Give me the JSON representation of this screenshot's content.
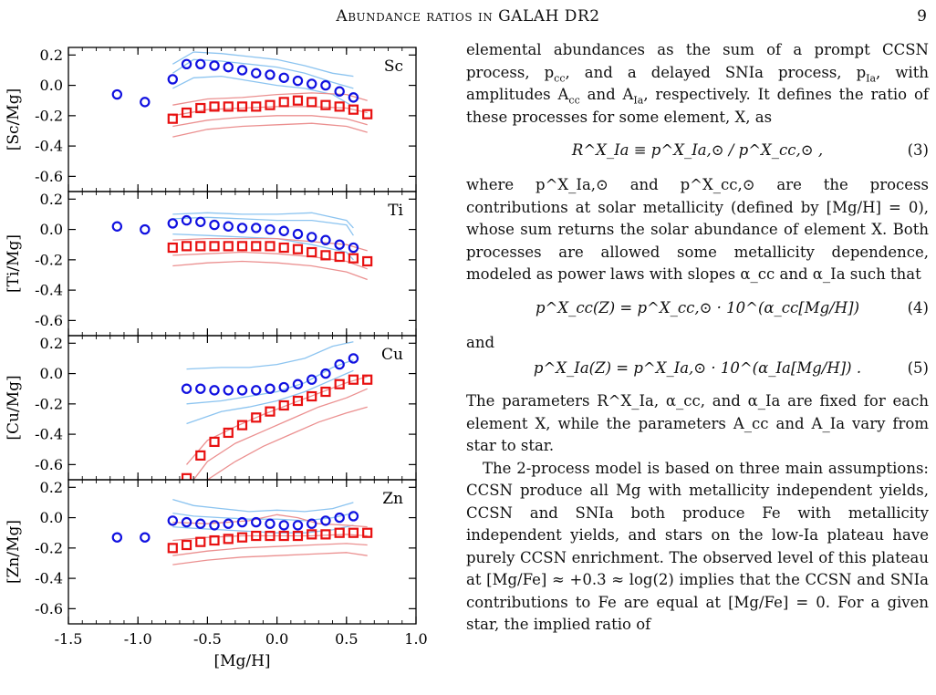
{
  "page": {
    "running_title": "Abundance ratios in GALAH DR2",
    "page_number": "9"
  },
  "chart_data": {
    "type": "scatter",
    "xlabel": "[Mg/H]",
    "xlim": [
      -1.5,
      1.0
    ],
    "x_ticks": [
      "-1.5",
      "-1.0",
      "-0.5",
      "0.0",
      "0.5",
      "1.0"
    ],
    "y_ticks": [
      "0.2",
      "0.0",
      "-0.2",
      "-0.4",
      "-0.6"
    ],
    "ylim": [
      -0.7,
      0.25
    ],
    "colors": {
      "low_ia": "#1010e0",
      "high_ia": "#e81010",
      "low_ia_band": "#8cc4f0",
      "high_ia_band": "#eb9090"
    },
    "panels": [
      {
        "element": "Sc",
        "ylabel": "[Sc/Mg]",
        "low_ia": {
          "x": [
            -1.15,
            -0.95,
            -0.75,
            -0.65,
            -0.55,
            -0.45,
            -0.35,
            -0.25,
            -0.15,
            -0.05,
            0.05,
            0.15,
            0.25,
            0.35,
            0.45,
            0.55
          ],
          "y": [
            -0.06,
            -0.11,
            0.04,
            0.14,
            0.14,
            0.13,
            0.12,
            0.1,
            0.08,
            0.07,
            0.05,
            0.03,
            0.01,
            0.0,
            -0.04,
            -0.08
          ]
        },
        "high_ia": {
          "x": [
            -0.75,
            -0.65,
            -0.55,
            -0.45,
            -0.35,
            -0.25,
            -0.15,
            -0.05,
            0.05,
            0.15,
            0.25,
            0.35,
            0.45,
            0.55,
            0.65
          ],
          "y": [
            -0.22,
            -0.18,
            -0.15,
            -0.14,
            -0.14,
            -0.14,
            -0.14,
            -0.13,
            -0.11,
            -0.1,
            -0.11,
            -0.13,
            -0.14,
            -0.16,
            -0.19
          ]
        },
        "low_ia_bands": [
          {
            "x": [
              -0.75,
              -0.6,
              -0.4,
              -0.2,
              0.0,
              0.2,
              0.4,
              0.55
            ],
            "y": [
              0.14,
              0.22,
              0.21,
              0.19,
              0.17,
              0.13,
              0.08,
              0.06
            ]
          },
          {
            "x": [
              -0.75,
              -0.6,
              -0.4,
              -0.2,
              0.0,
              0.2,
              0.4,
              0.55
            ],
            "y": [
              -0.02,
              0.05,
              0.06,
              0.03,
              0.0,
              -0.02,
              -0.06,
              -0.14
            ]
          },
          {
            "x": [
              -0.75,
              -0.6,
              -0.4,
              -0.2,
              0.0,
              0.2,
              0.4,
              0.55
            ],
            "y": [
              0.08,
              0.17,
              0.16,
              0.14,
              0.12,
              0.08,
              0.02,
              -0.02
            ]
          }
        ],
        "high_ia_bands": [
          {
            "x": [
              -0.75,
              -0.5,
              -0.25,
              0.0,
              0.25,
              0.5,
              0.65
            ],
            "y": [
              -0.13,
              -0.09,
              -0.08,
              -0.06,
              -0.05,
              -0.06,
              -0.1
            ]
          },
          {
            "x": [
              -0.75,
              -0.5,
              -0.25,
              0.0,
              0.25,
              0.5,
              0.65
            ],
            "y": [
              -0.2,
              -0.16,
              -0.15,
              -0.14,
              -0.14,
              -0.15,
              -0.18
            ]
          },
          {
            "x": [
              -0.75,
              -0.5,
              -0.25,
              0.0,
              0.25,
              0.5,
              0.65
            ],
            "y": [
              -0.27,
              -0.23,
              -0.21,
              -0.2,
              -0.2,
              -0.22,
              -0.26
            ]
          },
          {
            "x": [
              -0.75,
              -0.5,
              -0.25,
              0.0,
              0.25,
              0.5,
              0.65
            ],
            "y": [
              -0.34,
              -0.29,
              -0.27,
              -0.26,
              -0.25,
              -0.27,
              -0.31
            ]
          }
        ]
      },
      {
        "element": "Ti",
        "ylabel": "[Ti/Mg]",
        "low_ia": {
          "x": [
            -1.15,
            -0.95,
            -0.75,
            -0.65,
            -0.55,
            -0.45,
            -0.35,
            -0.25,
            -0.15,
            -0.05,
            0.05,
            0.15,
            0.25,
            0.35,
            0.45,
            0.55
          ],
          "y": [
            0.02,
            0.0,
            0.04,
            0.06,
            0.05,
            0.03,
            0.02,
            0.01,
            0.01,
            0.0,
            -0.01,
            -0.03,
            -0.05,
            -0.07,
            -0.1,
            -0.12
          ]
        },
        "high_ia": {
          "x": [
            -0.75,
            -0.65,
            -0.55,
            -0.45,
            -0.35,
            -0.25,
            -0.15,
            -0.05,
            0.05,
            0.15,
            0.25,
            0.35,
            0.45,
            0.55,
            0.65
          ],
          "y": [
            -0.12,
            -0.11,
            -0.11,
            -0.11,
            -0.11,
            -0.11,
            -0.11,
            -0.11,
            -0.12,
            -0.13,
            -0.15,
            -0.17,
            -0.18,
            -0.19,
            -0.21
          ]
        },
        "low_ia_bands": [
          {
            "x": [
              -0.75,
              -0.5,
              -0.25,
              0.0,
              0.25,
              0.5,
              0.55
            ],
            "y": [
              0.1,
              0.11,
              0.1,
              0.1,
              0.11,
              0.06,
              0.01
            ]
          },
          {
            "x": [
              -0.75,
              -0.5,
              -0.25,
              0.0,
              0.25,
              0.5,
              0.55
            ],
            "y": [
              -0.03,
              -0.04,
              -0.05,
              -0.06,
              -0.1,
              -0.15,
              -0.2
            ]
          },
          {
            "x": [
              -0.75,
              -0.5,
              -0.25,
              0.0,
              0.25,
              0.5,
              0.55
            ],
            "y": [
              0.07,
              0.08,
              0.07,
              0.06,
              0.06,
              0.03,
              -0.04
            ]
          }
        ],
        "high_ia_bands": [
          {
            "x": [
              -0.75,
              -0.5,
              -0.25,
              0.0,
              0.25,
              0.5,
              0.65
            ],
            "y": [
              -0.07,
              -0.06,
              -0.06,
              -0.06,
              -0.08,
              -0.1,
              -0.14
            ]
          },
          {
            "x": [
              -0.75,
              -0.5,
              -0.25,
              0.0,
              0.25,
              0.5,
              0.65
            ],
            "y": [
              -0.17,
              -0.16,
              -0.15,
              -0.16,
              -0.18,
              -0.21,
              -0.26
            ]
          },
          {
            "x": [
              -0.75,
              -0.5,
              -0.25,
              0.0,
              0.25,
              0.5,
              0.65
            ],
            "y": [
              -0.24,
              -0.22,
              -0.21,
              -0.22,
              -0.24,
              -0.28,
              -0.33
            ]
          }
        ]
      },
      {
        "element": "Cu",
        "ylabel": "[Cu/Mg]",
        "low_ia": {
          "x": [
            -0.65,
            -0.55,
            -0.45,
            -0.35,
            -0.25,
            -0.15,
            -0.05,
            0.05,
            0.15,
            0.25,
            0.35,
            0.45,
            0.55
          ],
          "y": [
            -0.1,
            -0.1,
            -0.11,
            -0.11,
            -0.11,
            -0.11,
            -0.1,
            -0.09,
            -0.07,
            -0.04,
            0.0,
            0.06,
            0.1
          ]
        },
        "high_ia": {
          "x": [
            -0.65,
            -0.55,
            -0.45,
            -0.35,
            -0.25,
            -0.15,
            -0.05,
            0.05,
            0.15,
            0.25,
            0.35,
            0.45,
            0.55,
            0.65
          ],
          "y": [
            -0.69,
            -0.54,
            -0.45,
            -0.39,
            -0.34,
            -0.29,
            -0.25,
            -0.21,
            -0.18,
            -0.15,
            -0.12,
            -0.07,
            -0.04,
            -0.04
          ]
        },
        "low_ia_bands": [
          {
            "x": [
              -0.65,
              -0.4,
              -0.2,
              0.0,
              0.2,
              0.4,
              0.55
            ],
            "y": [
              0.03,
              0.04,
              0.04,
              0.06,
              0.1,
              0.18,
              0.21
            ]
          },
          {
            "x": [
              -0.65,
              -0.4,
              -0.2,
              0.0,
              0.2,
              0.4,
              0.55
            ],
            "y": [
              -0.33,
              -0.25,
              -0.22,
              -0.18,
              -0.12,
              -0.04,
              0.02
            ]
          },
          {
            "x": [
              -0.65,
              -0.4,
              -0.2,
              0.0,
              0.2,
              0.4,
              0.55
            ],
            "y": [
              -0.2,
              -0.18,
              -0.15,
              -0.12,
              -0.06,
              0.04,
              0.09
            ]
          }
        ],
        "high_ia_bands": [
          {
            "x": [
              -0.65,
              -0.5,
              -0.3,
              -0.1,
              0.1,
              0.3,
              0.5,
              0.65
            ],
            "y": [
              -0.6,
              -0.44,
              -0.35,
              -0.27,
              -0.2,
              -0.13,
              -0.06,
              -0.02
            ]
          },
          {
            "x": [
              -0.6,
              -0.5,
              -0.3,
              -0.1,
              0.1,
              0.3,
              0.5,
              0.65
            ],
            "y": [
              -0.7,
              -0.58,
              -0.46,
              -0.38,
              -0.3,
              -0.22,
              -0.16,
              -0.1
            ]
          },
          {
            "x": [
              -0.5,
              -0.3,
              -0.1,
              0.1,
              0.3,
              0.5,
              0.65
            ],
            "y": [
              -0.7,
              -0.58,
              -0.48,
              -0.4,
              -0.32,
              -0.26,
              -0.22
            ]
          }
        ]
      },
      {
        "element": "Zn",
        "ylabel": "[Zn/Mg]",
        "low_ia": {
          "x": [
            -1.15,
            -0.95,
            -0.75,
            -0.65,
            -0.55,
            -0.45,
            -0.35,
            -0.25,
            -0.15,
            -0.05,
            0.05,
            0.15,
            0.25,
            0.35,
            0.45,
            0.55
          ],
          "y": [
            -0.13,
            -0.13,
            -0.02,
            -0.03,
            -0.04,
            -0.05,
            -0.04,
            -0.03,
            -0.03,
            -0.04,
            -0.05,
            -0.05,
            -0.04,
            -0.02,
            0.0,
            0.01
          ]
        },
        "high_ia": {
          "x": [
            -0.75,
            -0.65,
            -0.55,
            -0.45,
            -0.35,
            -0.25,
            -0.15,
            -0.05,
            0.05,
            0.15,
            0.25,
            0.35,
            0.45,
            0.55,
            0.65
          ],
          "y": [
            -0.2,
            -0.18,
            -0.16,
            -0.15,
            -0.14,
            -0.13,
            -0.12,
            -0.12,
            -0.12,
            -0.12,
            -0.11,
            -0.11,
            -0.1,
            -0.1,
            -0.1
          ]
        },
        "low_ia_bands": [
          {
            "x": [
              -0.75,
              -0.6,
              -0.4,
              -0.2,
              0.0,
              0.2,
              0.4,
              0.55
            ],
            "y": [
              0.12,
              0.08,
              0.06,
              0.04,
              0.05,
              0.04,
              0.06,
              0.1
            ]
          },
          {
            "x": [
              -0.75,
              -0.6,
              -0.4,
              -0.2,
              0.0,
              0.2,
              0.4,
              0.55
            ],
            "y": [
              -0.06,
              -0.07,
              -0.08,
              -0.09,
              -0.1,
              -0.1,
              -0.08,
              -0.05
            ]
          },
          {
            "x": [
              -0.75,
              -0.6,
              -0.4,
              -0.2,
              0.0,
              0.2,
              0.4,
              0.55
            ],
            "y": [
              0.03,
              0.01,
              0.0,
              -0.01,
              -0.01,
              -0.02,
              0.0,
              0.03
            ]
          }
        ],
        "high_ia_bands": [
          {
            "x": [
              -0.75,
              -0.5,
              -0.2,
              0.0,
              0.15,
              0.3,
              0.5,
              0.65
            ],
            "y": [
              -0.03,
              -0.04,
              -0.02,
              0.02,
              0.0,
              -0.04,
              -0.05,
              -0.06
            ]
          },
          {
            "x": [
              -0.75,
              -0.5,
              -0.25,
              0.0,
              0.25,
              0.5,
              0.65
            ],
            "y": [
              -0.15,
              -0.13,
              -0.12,
              -0.12,
              -0.12,
              -0.11,
              -0.12
            ]
          },
          {
            "x": [
              -0.75,
              -0.5,
              -0.25,
              0.0,
              0.25,
              0.5,
              0.65
            ],
            "y": [
              -0.25,
              -0.22,
              -0.2,
              -0.19,
              -0.18,
              -0.17,
              -0.18
            ]
          },
          {
            "x": [
              -0.75,
              -0.5,
              -0.25,
              0.0,
              0.25,
              0.5,
              0.65
            ],
            "y": [
              -0.31,
              -0.28,
              -0.26,
              -0.25,
              -0.24,
              -0.23,
              -0.25
            ]
          }
        ]
      }
    ]
  },
  "text": {
    "p1": "elemental abundances as the sum of a prompt CCSN process, p",
    "p1b": "cc",
    "p1c": ", and a delayed SNIa process, p",
    "p1d": "Ia",
    "p1e": ", with amplitudes A",
    "p1f": "cc",
    "p1g": " and A",
    "p1h": "Ia",
    "p1i": ", respectively. It defines the ratio of these processes for some element, X, as",
    "eq3": "R^X_Ia ≡ p^X_Ia,⊙ / p^X_cc,⊙ ,",
    "eq3_num": "(3)",
    "p2": "where p^X_Ia,⊙ and p^X_cc,⊙ are the process contributions at solar metallicity (defined by [Mg/H] = 0), whose sum returns the solar abundance of element X. Both processes are allowed some metallicity dependence, modeled as power laws with slopes α_cc and α_Ia such that",
    "eq4": "p^X_cc(Z) = p^X_cc,⊙ · 10^(α_cc[Mg/H])",
    "eq4_num": "(4)",
    "and": "and",
    "eq5": "p^X_Ia(Z) = p^X_Ia,⊙ · 10^(α_Ia[Mg/H]) .",
    "eq5_num": "(5)",
    "p3": "The parameters R^X_Ia, α_cc, and α_Ia are fixed for each element X, while the parameters A_cc and A_Ia vary from star to star.",
    "p4": "The 2-process model is based on three main assumptions: CCSN produce all Mg with metallicity independent yields, CCSN and SNIa both produce Fe with metallicity independent yields, and stars on the low-Ia plateau have purely CCSN enrichment. The observed level of this plateau at [Mg/Fe] ≈ +0.3 ≈ log(2) implies that the CCSN and SNIa contributions to Fe are equal at [Mg/Fe] = 0. For a given star, the implied ratio of"
  }
}
